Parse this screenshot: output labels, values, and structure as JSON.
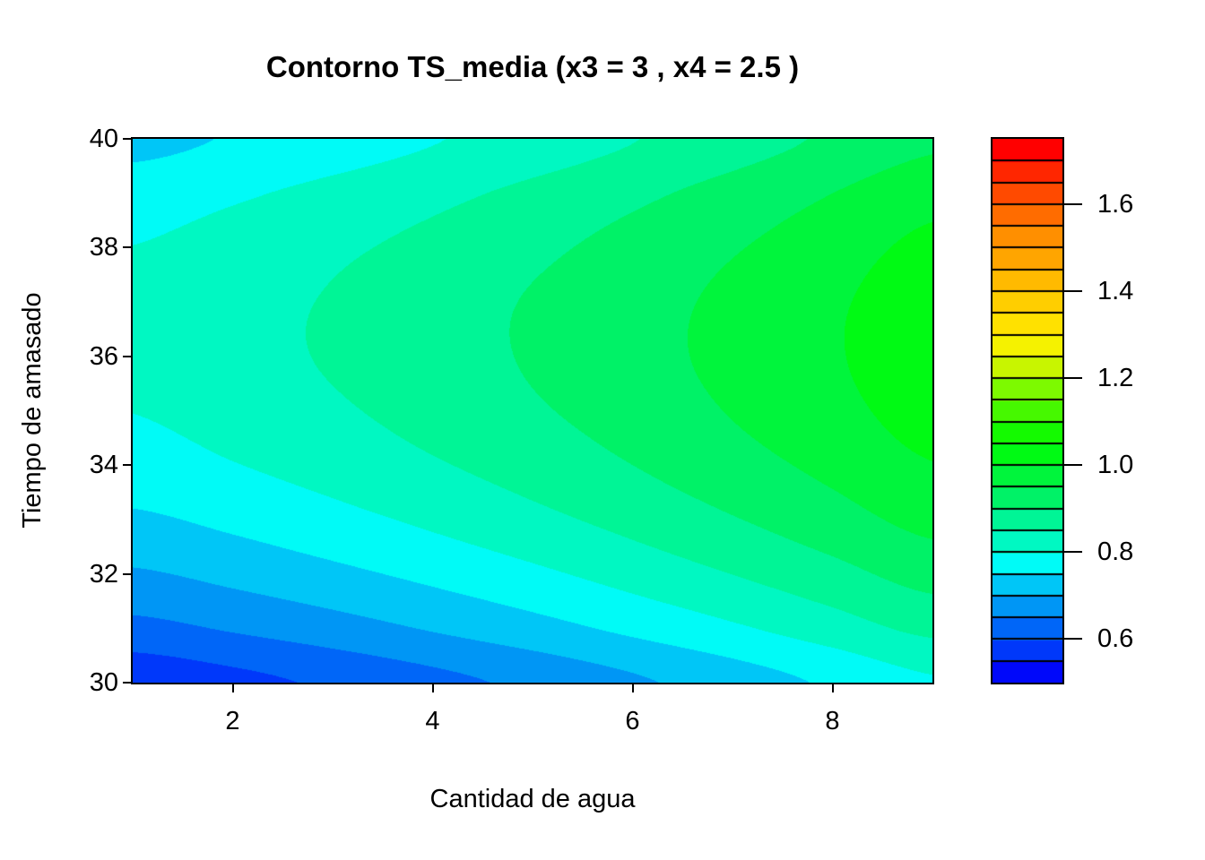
{
  "title": "Contorno TS_media (x3 = 3 , x4 = 2.5 )",
  "chart_data": {
    "type": "filled_contour",
    "title": "Contorno TS_media (x3 = 3 , x4 = 2.5 )",
    "xlabel": "Cantidad de agua",
    "ylabel": "Tiempo de amasado",
    "xlim": [
      1,
      9
    ],
    "ylim": [
      30,
      40
    ],
    "zlim": [
      0.5,
      1.75
    ],
    "level_step": 0.05,
    "x_ticks": [
      2,
      4,
      6,
      8
    ],
    "y_ticks": [
      30,
      32,
      34,
      36,
      38,
      40
    ],
    "legend_ticks": [
      0.6,
      0.8,
      1.0,
      1.2,
      1.4,
      1.6
    ],
    "legend_position": "right",
    "grid_on": false,
    "palette": [
      "#0008FA",
      "#0038FA",
      "#0066F8",
      "#0096F5",
      "#00C6F7",
      "#00FBF7",
      "#00F8C2",
      "#00F596",
      "#00F267",
      "#00F53C",
      "#00FA14",
      "#14FA00",
      "#46F800",
      "#7DFA00",
      "#C8F500",
      "#F5F200",
      "#FFE100",
      "#FFCE00",
      "#FFBA00",
      "#FFA500",
      "#FF8F00",
      "#FF6C00",
      "#FF4A00",
      "#FF2600",
      "#FF0000"
    ],
    "grid_x": [
      1,
      2,
      3,
      4,
      5,
      6,
      7,
      8,
      9
    ],
    "grid_y": [
      30,
      31,
      32,
      33,
      34,
      35,
      36,
      37,
      38,
      39,
      40
    ],
    "z": [
      [
        0.564,
        0.585,
        0.609,
        0.635,
        0.662,
        0.692,
        0.724,
        0.758,
        0.794
      ],
      [
        0.635,
        0.656,
        0.679,
        0.705,
        0.732,
        0.762,
        0.793,
        0.827,
        0.863
      ],
      [
        0.694,
        0.715,
        0.738,
        0.763,
        0.79,
        0.82,
        0.851,
        0.884,
        0.92
      ],
      [
        0.742,
        0.762,
        0.785,
        0.81,
        0.837,
        0.866,
        0.897,
        0.93,
        0.965
      ],
      [
        0.777,
        0.798,
        0.82,
        0.845,
        0.871,
        0.9,
        0.931,
        0.963,
        0.998
      ],
      [
        0.801,
        0.821,
        0.843,
        0.868,
        0.894,
        0.922,
        0.953,
        0.985,
        1.02
      ],
      [
        0.813,
        0.833,
        0.855,
        0.879,
        0.905,
        0.933,
        0.963,
        0.995,
        1.03
      ],
      [
        0.814,
        0.833,
        0.854,
        0.878,
        0.904,
        0.931,
        0.961,
        0.993,
        1.027
      ],
      [
        0.801,
        0.82,
        0.841,
        0.864,
        0.889,
        0.917,
        0.946,
        0.978,
        1.012
      ],
      [
        0.775,
        0.793,
        0.814,
        0.837,
        0.862,
        0.889,
        0.918,
        0.95,
        0.983
      ],
      [
        0.735,
        0.754,
        0.774,
        0.797,
        0.821,
        0.848,
        0.877,
        0.908,
        0.941
      ]
    ]
  }
}
